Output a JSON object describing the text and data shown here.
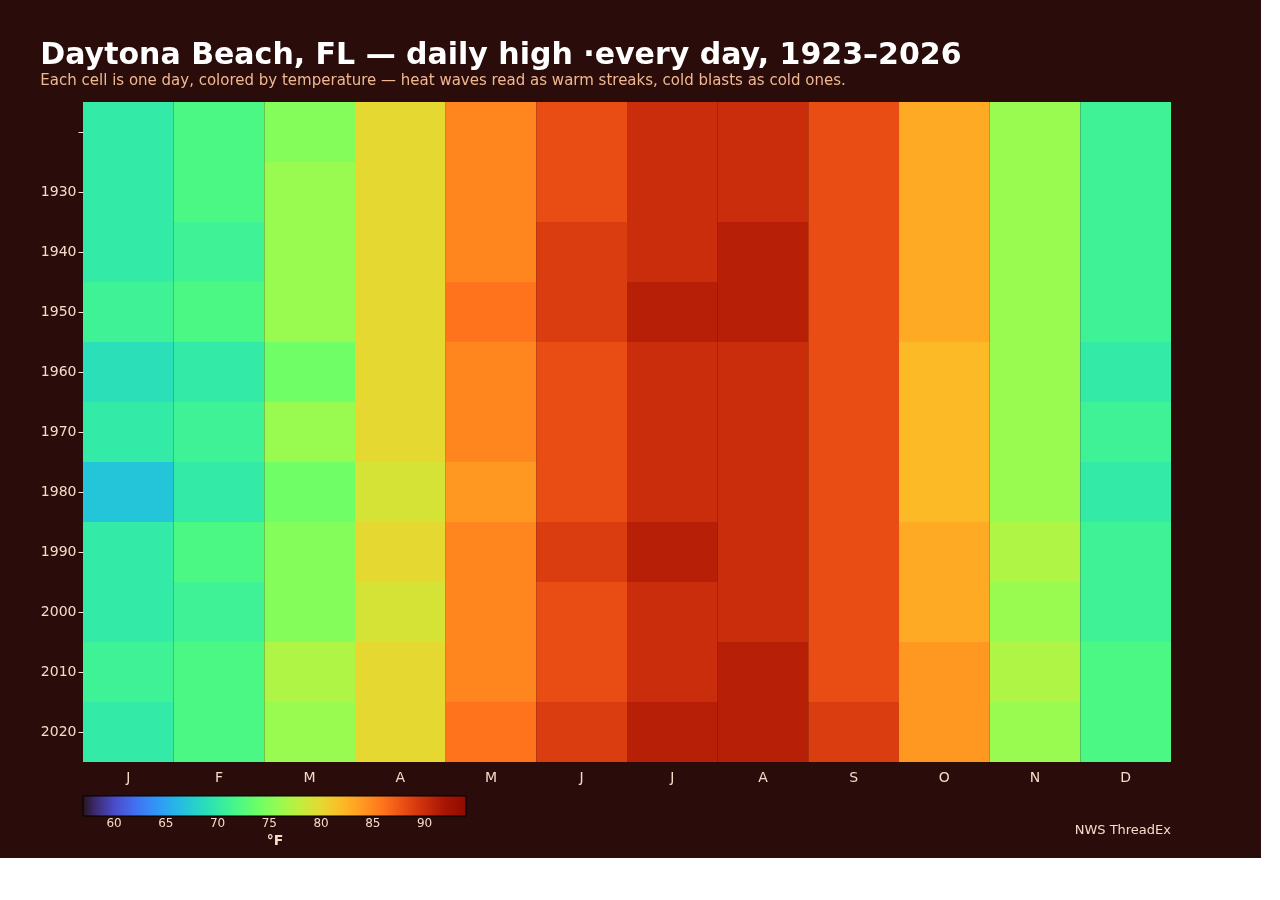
{
  "chart_data": {
    "type": "heatmap",
    "title": "Daytona Beach, FL — daily high ·every day, 1923–2026",
    "subtitle": "Each cell is one day, colored by temperature — heat waves read as warm streaks, cold blasts as cold ones.",
    "categories": [
      "J",
      "F",
      "M",
      "A",
      "M",
      "J",
      "J",
      "A",
      "S",
      "O",
      "N",
      "D"
    ],
    "y_categories": [
      null,
      "1930",
      "1940",
      "1950",
      "1960",
      "1970",
      "1980",
      "1990",
      "2000",
      "2010",
      "2020"
    ],
    "cells": [
      [
        70,
        72,
        75,
        80,
        85,
        88,
        90,
        90,
        88,
        83,
        76,
        71
      ],
      [
        70,
        72,
        76,
        80,
        85,
        88,
        90,
        90,
        88,
        83,
        76,
        71
      ],
      [
        70,
        71,
        76,
        80,
        85,
        89,
        90,
        91,
        88,
        83,
        76,
        71
      ],
      [
        71,
        72,
        76,
        80,
        86,
        89,
        91,
        91,
        88,
        83,
        76,
        71
      ],
      [
        69,
        70,
        74,
        80,
        85,
        88,
        90,
        90,
        88,
        82,
        76,
        70
      ],
      [
        70,
        71,
        76,
        80,
        85,
        88,
        90,
        90,
        88,
        82,
        76,
        71
      ],
      [
        67,
        70,
        74,
        79,
        84,
        88,
        90,
        90,
        88,
        82,
        76,
        70
      ],
      [
        70,
        72,
        75,
        80,
        85,
        89,
        91,
        90,
        88,
        83,
        77,
        71
      ],
      [
        70,
        71,
        75,
        79,
        85,
        88,
        90,
        90,
        88,
        83,
        76,
        71
      ],
      [
        71,
        72,
        77,
        80,
        85,
        88,
        90,
        91,
        88,
        84,
        77,
        72
      ],
      [
        70,
        72,
        76,
        80,
        86,
        89,
        91,
        91,
        89,
        84,
        76,
        72
      ]
    ],
    "clabel": "°F",
    "clim": [
      57,
      94
    ],
    "cticks": [
      60,
      65,
      70,
      75,
      80,
      85,
      90
    ],
    "annotations": [
      "NWS ThreadEx"
    ]
  }
}
